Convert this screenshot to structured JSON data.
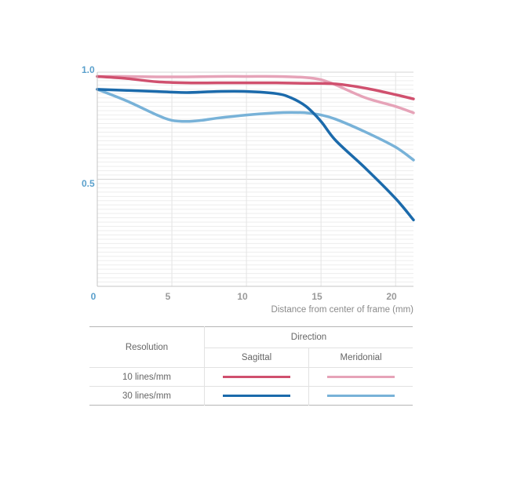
{
  "chart_data": {
    "type": "line",
    "xlabel": "Distance from center of frame (mm)",
    "ylabel": "",
    "xlim": [
      0,
      21.2
    ],
    "ylim": [
      0,
      1.0
    ],
    "x_ticks": [
      "0",
      "5",
      "10",
      "15",
      "20"
    ],
    "y_ticks": [
      "0.5",
      "1.0"
    ],
    "grid": true,
    "series": [
      {
        "name": "10 lines/mm Sagittal",
        "color": "#d0506e",
        "x": [
          0,
          2,
          4,
          6,
          8,
          10,
          12,
          14,
          16,
          18,
          20,
          21.2
        ],
        "y": [
          0.98,
          0.97,
          0.955,
          0.95,
          0.95,
          0.95,
          0.95,
          0.948,
          0.945,
          0.925,
          0.895,
          0.875
        ]
      },
      {
        "name": "10 lines/mm Meridonial",
        "color": "#e6a3b8",
        "x": [
          0,
          2,
          4,
          6,
          8,
          10,
          12,
          14,
          15,
          16,
          18,
          20,
          21.2
        ],
        "y": [
          0.98,
          0.98,
          0.978,
          0.978,
          0.98,
          0.98,
          0.98,
          0.975,
          0.965,
          0.94,
          0.88,
          0.84,
          0.81
        ]
      },
      {
        "name": "30 lines/mm Sagittal",
        "color": "#1b6aab",
        "x": [
          0,
          2,
          4,
          6,
          8,
          10,
          12,
          13,
          14,
          15,
          16,
          18,
          20,
          21.2
        ],
        "y": [
          0.92,
          0.915,
          0.91,
          0.905,
          0.91,
          0.91,
          0.9,
          0.88,
          0.84,
          0.77,
          0.68,
          0.55,
          0.41,
          0.31
        ]
      },
      {
        "name": "30 lines/mm Meridonial",
        "color": "#78b2d8",
        "x": [
          0,
          2,
          4,
          5,
          6,
          7,
          8,
          10,
          12,
          13,
          14,
          15,
          16,
          18,
          20,
          21.2
        ],
        "y": [
          0.92,
          0.865,
          0.8,
          0.775,
          0.77,
          0.775,
          0.785,
          0.8,
          0.81,
          0.812,
          0.81,
          0.8,
          0.78,
          0.72,
          0.65,
          0.59
        ]
      }
    ]
  },
  "legend": {
    "resolution_label": "Resolution",
    "direction_label": "Direction",
    "sagittal_label": "Sagittal",
    "meridonial_label": "Meridonial",
    "rows": [
      {
        "label": "10 lines/mm",
        "sagittal_color": "#d0506e",
        "meridonial_color": "#e6a3b8"
      },
      {
        "label": "30 lines/mm",
        "sagittal_color": "#1b6aab",
        "meridonial_color": "#78b2d8"
      }
    ]
  }
}
